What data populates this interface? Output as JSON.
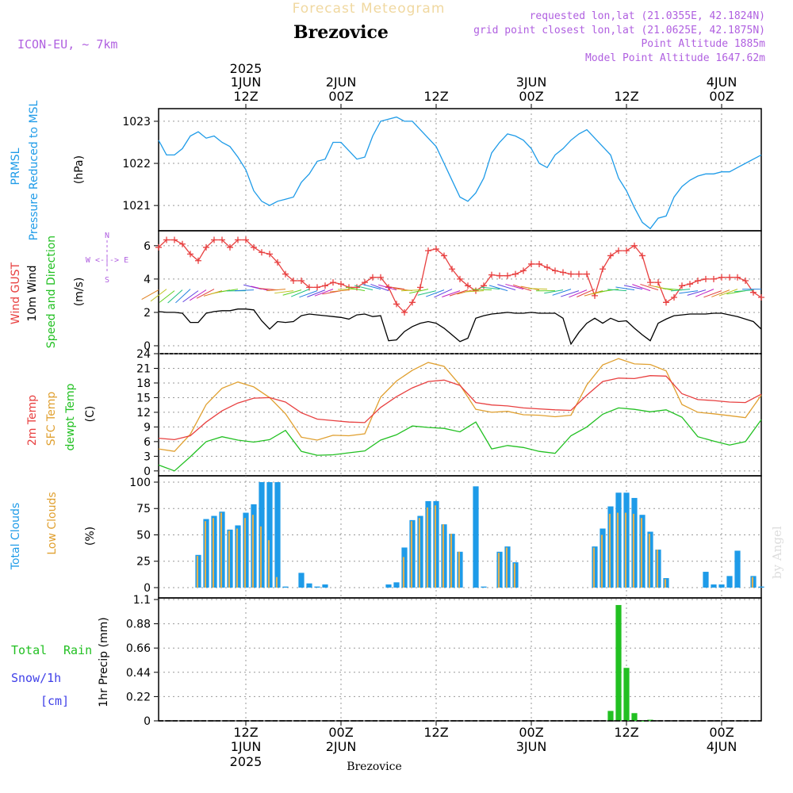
{
  "header": {
    "title": "Forecast Meteogram",
    "location": "Brezovice",
    "model": "ICON-EU, ~ 7km",
    "requested": "requested lon,lat (21.0355E, 42.1824N)",
    "gridpoint": "grid point closest lon,lat (21.0625E, 42.1875N)",
    "altitude": "Point Altitude 1885m",
    "model_altitude": "Model Point Altitude 1647.62m",
    "footer_location": "Brezovice",
    "watermark": "by Angel"
  },
  "time_axis": {
    "ticks": [
      {
        "t": 12,
        "hour": "12Z",
        "date": "1JUN",
        "year": "2025"
      },
      {
        "t": 24,
        "hour": "00Z",
        "date": "2JUN",
        "year": ""
      },
      {
        "t": 36,
        "hour": "12Z",
        "date": "",
        "year": ""
      },
      {
        "t": 48,
        "hour": "00Z",
        "date": "3JUN",
        "year": ""
      },
      {
        "t": 60,
        "hour": "12Z",
        "date": "",
        "year": ""
      },
      {
        "t": 72,
        "hour": "00Z",
        "date": "4JUN",
        "year": ""
      }
    ],
    "bottom_ticks": [
      {
        "t": 12,
        "hour": "12Z",
        "date": "1JUN",
        "year": "2025"
      },
      {
        "t": 24,
        "hour": "00Z",
        "date": "2JUN",
        "year": ""
      },
      {
        "t": 36,
        "hour": "12Z",
        "date": "",
        "year": ""
      },
      {
        "t": 48,
        "hour": "00Z",
        "date": "3JUN",
        "year": ""
      },
      {
        "t": 60,
        "hour": "12Z",
        "date": "",
        "year": ""
      },
      {
        "t": 72,
        "hour": "00Z",
        "date": "4JUN",
        "year": ""
      }
    ]
  },
  "colors": {
    "pressure": "#1e9be8",
    "gust": "#e84040",
    "wind": "#000000",
    "temp2m": "#e84040",
    "sfc": "#e0a030",
    "dewpt": "#22c022",
    "clouds_total": "#1e9be8",
    "clouds_low": "#e0b050",
    "rain": "#22c022",
    "snow": "#4040e8",
    "label_purple": "#b060e0"
  },
  "panels": {
    "pressure": {
      "label1": "PRMSL",
      "label2": "Pressure Reduced to MSL",
      "unit": "(hPa)",
      "yticks": [
        "1021",
        "1022",
        "1023"
      ]
    },
    "wind": {
      "label1": "Wind GUST",
      "label2": "10m Wind",
      "label3": "Speed and Direction",
      "unit": "(m/s)",
      "compass_n": "N",
      "compass_s": "S",
      "compass_row": "W <-|-> E",
      "yticks": [
        "0",
        "2",
        "4",
        "6"
      ]
    },
    "temp": {
      "label1": "2m Temp",
      "label2": "SFC Temp",
      "label3": "dewpt Temp",
      "unit": "(C)",
      "yticks": [
        "0",
        "3",
        "6",
        "9",
        "12",
        "15",
        "18",
        "21",
        "24"
      ]
    },
    "clouds": {
      "label1": "Total Clouds",
      "label2": "Low Clouds",
      "unit": "(%)",
      "yticks": [
        "0",
        "25",
        "50",
        "75",
        "100"
      ]
    },
    "precip": {
      "label1": "Total",
      "label1b": "Rain",
      "label2": "Snow/1h",
      "label3": "[cm]",
      "unit": "1hr Precip (mm)",
      "yticks": [
        "0",
        "0.22",
        "0.44",
        "0.66",
        "0.88",
        "1.1"
      ]
    }
  },
  "chart_data": {
    "type": "line",
    "x_unit": "hours since 2025-06-01 00Z",
    "x_range": [
      1,
      77
    ],
    "series": [
      {
        "name": "PRMSL",
        "ylim": [
          1020.4,
          1023.3
        ],
        "x": [
          1,
          2,
          3,
          4,
          5,
          6,
          7,
          8,
          9,
          10,
          11,
          12,
          13,
          14,
          15,
          16,
          17,
          18,
          19,
          20,
          21,
          22,
          23,
          24,
          25,
          26,
          27,
          28,
          29,
          30,
          31,
          32,
          33,
          34,
          35,
          36,
          37,
          38,
          39,
          40,
          41,
          42,
          43,
          44,
          45,
          46,
          47,
          48,
          49,
          50,
          51,
          52,
          53,
          54,
          55,
          56,
          57,
          58,
          59,
          60,
          61,
          62,
          63,
          64,
          65,
          66,
          67,
          68,
          69,
          70,
          71,
          72,
          73,
          74,
          75,
          76,
          77
        ],
        "values": [
          1022.55,
          1022.2,
          1022.2,
          1022.35,
          1022.65,
          1022.75,
          1022.6,
          1022.65,
          1022.5,
          1022.4,
          1022.15,
          1021.85,
          1021.35,
          1021.1,
          1021.0,
          1021.1,
          1021.15,
          1021.2,
          1021.55,
          1021.75,
          1022.05,
          1022.1,
          1022.5,
          1022.5,
          1022.3,
          1022.1,
          1022.15,
          1022.65,
          1023.0,
          1023.05,
          1023.1,
          1023.0,
          1023.0,
          1022.8,
          1022.6,
          1022.4,
          1022.0,
          1021.6,
          1021.2,
          1021.1,
          1021.3,
          1021.65,
          1022.25,
          1022.5,
          1022.7,
          1022.65,
          1022.55,
          1022.35,
          1022.0,
          1021.9,
          1022.2,
          1022.35,
          1022.55,
          1022.7,
          1022.8,
          1022.6,
          1022.4,
          1022.2,
          1021.65,
          1021.35,
          1020.95,
          1020.6,
          1020.45,
          1020.7,
          1020.75,
          1021.2,
          1021.45,
          1021.6,
          1021.7,
          1021.75,
          1021.75,
          1021.8,
          1021.8,
          1021.9,
          1022.0,
          1022.1,
          1022.2
        ]
      },
      {
        "name": "Wind GUST",
        "ylim": [
          0,
          6.8
        ],
        "x": [
          1,
          2,
          3,
          4,
          5,
          6,
          7,
          8,
          9,
          10,
          11,
          12,
          13,
          14,
          15,
          16,
          17,
          18,
          19,
          20,
          21,
          22,
          23,
          24,
          25,
          26,
          27,
          28,
          29,
          30,
          31,
          32,
          33,
          34,
          35,
          36,
          37,
          38,
          39,
          40,
          41,
          42,
          43,
          44,
          45,
          46,
          47,
          48,
          49,
          50,
          51,
          52,
          53,
          54,
          55,
          56,
          57,
          58,
          59,
          60,
          61,
          62,
          63,
          64,
          65,
          66,
          67,
          68,
          69,
          70,
          71,
          72,
          73,
          74,
          75,
          76,
          77
        ],
        "values": [
          5.9,
          6.35,
          6.35,
          6.1,
          5.5,
          5.1,
          5.9,
          6.35,
          6.35,
          5.9,
          6.35,
          6.35,
          5.9,
          5.6,
          5.5,
          5.0,
          4.3,
          3.9,
          3.9,
          3.5,
          3.5,
          3.6,
          3.8,
          3.7,
          3.5,
          3.5,
          3.8,
          4.1,
          4.1,
          3.5,
          2.5,
          2.0,
          2.6,
          3.5,
          5.7,
          5.8,
          5.4,
          4.6,
          4.0,
          3.6,
          3.3,
          3.6,
          4.25,
          4.2,
          4.2,
          4.3,
          4.5,
          4.9,
          4.9,
          4.7,
          4.5,
          4.4,
          4.3,
          4.3,
          4.3,
          3.0,
          4.6,
          5.4,
          5.7,
          5.7,
          6.0,
          5.4,
          3.8,
          3.8,
          2.6,
          2.9,
          3.6,
          3.7,
          3.9,
          4.0,
          4.0,
          4.1,
          4.1,
          4.1,
          3.9,
          3.2,
          2.9
        ]
      },
      {
        "name": "10m Wind",
        "ylim": [
          0,
          6.8
        ],
        "x": [
          1,
          2,
          3,
          4,
          5,
          6,
          7,
          8,
          9,
          10,
          11,
          12,
          13,
          14,
          15,
          16,
          17,
          18,
          19,
          20,
          21,
          22,
          23,
          24,
          25,
          26,
          27,
          28,
          29,
          30,
          31,
          32,
          33,
          34,
          35,
          36,
          37,
          38,
          39,
          40,
          41,
          42,
          43,
          44,
          45,
          46,
          47,
          48,
          49,
          50,
          51,
          52,
          53,
          54,
          55,
          56,
          57,
          58,
          59,
          60,
          61,
          62,
          63,
          64,
          65,
          66,
          67,
          68,
          69,
          70,
          71,
          72,
          73,
          74,
          75,
          76,
          77
        ],
        "values": [
          2.05,
          2.0,
          2.0,
          1.95,
          1.4,
          1.4,
          1.95,
          2.05,
          2.1,
          2.1,
          2.2,
          2.2,
          2.15,
          1.5,
          1.0,
          1.45,
          1.4,
          1.45,
          1.8,
          1.9,
          1.85,
          1.8,
          1.75,
          1.7,
          1.6,
          1.85,
          1.9,
          1.75,
          1.8,
          0.3,
          0.35,
          0.85,
          1.15,
          1.35,
          1.45,
          1.35,
          1.05,
          0.65,
          0.25,
          0.45,
          1.65,
          1.8,
          1.9,
          1.95,
          2.0,
          1.95,
          1.95,
          2.0,
          1.95,
          1.95,
          1.95,
          1.65,
          0.1,
          0.8,
          1.35,
          1.65,
          1.35,
          1.65,
          1.45,
          1.5,
          1.05,
          0.65,
          0.3,
          1.35,
          1.6,
          1.8,
          1.85,
          1.9,
          1.9,
          1.9,
          1.95,
          1.95,
          1.85,
          1.75,
          1.6,
          1.45,
          1.0
        ]
      },
      {
        "name": "2m Temp",
        "ylim": [
          -1,
          24
        ],
        "x": [
          1,
          3,
          5,
          7,
          9,
          11,
          13,
          15,
          17,
          19,
          21,
          23,
          25,
          27,
          29,
          31,
          33,
          35,
          37,
          39,
          41,
          43,
          45,
          47,
          49,
          51,
          53,
          55,
          57,
          59,
          61,
          63,
          65,
          67,
          69,
          71,
          73,
          75,
          77
        ],
        "values": [
          6.7,
          6.4,
          7.2,
          10.0,
          12.3,
          13.9,
          14.9,
          15.0,
          14.1,
          11.9,
          10.6,
          10.3,
          10.0,
          9.9,
          13.0,
          15.2,
          17.0,
          18.3,
          18.6,
          17.5,
          14.0,
          13.5,
          13.3,
          12.9,
          12.7,
          12.5,
          12.4,
          15.5,
          18.3,
          19.0,
          18.9,
          19.5,
          19.4,
          15.8,
          14.6,
          14.4,
          14.1,
          14.0,
          15.7
        ]
      },
      {
        "name": "SFC Temp",
        "ylim": [
          -1,
          24
        ],
        "x": [
          1,
          3,
          5,
          7,
          9,
          11,
          13,
          15,
          17,
          19,
          21,
          23,
          25,
          27,
          29,
          31,
          33,
          35,
          37,
          39,
          41,
          43,
          45,
          47,
          49,
          51,
          53,
          55,
          57,
          59,
          61,
          63,
          65,
          67,
          69,
          71,
          73,
          75,
          77
        ],
        "values": [
          4.5,
          4.0,
          7.5,
          13.6,
          16.9,
          18.2,
          17.2,
          15.0,
          11.7,
          6.9,
          6.3,
          7.3,
          7.2,
          7.6,
          15.1,
          18.4,
          20.6,
          22.2,
          21.4,
          17.6,
          12.6,
          12.0,
          12.2,
          11.5,
          11.4,
          11.1,
          11.4,
          17.6,
          21.7,
          23.0,
          21.9,
          21.8,
          20.5,
          13.6,
          12.0,
          11.7,
          11.3,
          10.9,
          15.5
        ]
      },
      {
        "name": "dewpt Temp",
        "ylim": [
          -1,
          24
        ],
        "x": [
          1,
          3,
          5,
          7,
          9,
          11,
          13,
          15,
          17,
          19,
          21,
          23,
          25,
          27,
          29,
          31,
          33,
          35,
          37,
          39,
          41,
          43,
          45,
          47,
          49,
          51,
          53,
          55,
          57,
          59,
          61,
          63,
          65,
          67,
          69,
          71,
          73,
          75,
          77
        ],
        "values": [
          1.2,
          0.0,
          2.9,
          6.0,
          7.0,
          6.3,
          5.9,
          6.4,
          8.3,
          4.0,
          3.2,
          3.3,
          3.7,
          4.1,
          6.3,
          7.4,
          9.2,
          8.9,
          8.7,
          8.0,
          10.0,
          4.5,
          5.2,
          4.8,
          4.0,
          3.6,
          7.2,
          9.0,
          11.6,
          12.9,
          12.6,
          12.1,
          12.5,
          11.0,
          7.0,
          6.1,
          5.3,
          6.0,
          10.5
        ]
      },
      {
        "name": "Total Clouds",
        "ylim": [
          0,
          106
        ],
        "x": [
          1,
          2,
          3,
          4,
          5,
          6,
          7,
          8,
          9,
          10,
          11,
          12,
          13,
          14,
          15,
          16,
          17,
          18,
          19,
          20,
          21,
          22,
          23,
          24,
          25,
          26,
          27,
          28,
          29,
          30,
          31,
          32,
          33,
          34,
          35,
          36,
          37,
          38,
          39,
          40,
          41,
          42,
          43,
          44,
          45,
          46,
          47,
          48,
          49,
          50,
          51,
          52,
          53,
          54,
          55,
          56,
          57,
          58,
          59,
          60,
          61,
          62,
          63,
          64,
          65,
          66,
          67,
          68,
          69,
          70,
          71,
          72,
          73,
          74,
          75,
          76,
          77
        ],
        "values": [
          0,
          0,
          0,
          0,
          0,
          31,
          65,
          68,
          72,
          55,
          59,
          71,
          79,
          100,
          100,
          100,
          1,
          0,
          14,
          4,
          1,
          3,
          0,
          0,
          0,
          0,
          0,
          0,
          0,
          3,
          5,
          38,
          64,
          68,
          82,
          82,
          60,
          51,
          34,
          0,
          96,
          1,
          0,
          34,
          39,
          24,
          0,
          0,
          0,
          0,
          0,
          0,
          0,
          0,
          0,
          39,
          56,
          77,
          90,
          90,
          85,
          69,
          53,
          36,
          9,
          0,
          0,
          0,
          0,
          15,
          3,
          3,
          11,
          35,
          0,
          11,
          1
        ]
      },
      {
        "name": "Low Clouds",
        "ylim": [
          0,
          106
        ],
        "x": [
          1,
          2,
          3,
          4,
          5,
          6,
          7,
          8,
          9,
          10,
          11,
          12,
          13,
          14,
          15,
          16,
          17,
          18,
          19,
          20,
          21,
          22,
          23,
          24,
          25,
          26,
          27,
          28,
          29,
          30,
          31,
          32,
          33,
          34,
          35,
          36,
          37,
          38,
          39,
          40,
          41,
          42,
          43,
          44,
          45,
          46,
          47,
          48,
          49,
          50,
          51,
          52,
          53,
          54,
          55,
          56,
          57,
          58,
          59,
          60,
          61,
          62,
          63,
          64,
          65,
          66,
          67,
          68,
          69,
          70,
          71,
          72,
          73,
          74,
          75,
          76,
          77
        ],
        "values": [
          0,
          0,
          0,
          0,
          0,
          30,
          63,
          66,
          71,
          54,
          56,
          66,
          69,
          58,
          45,
          10,
          0,
          0,
          0,
          0,
          0,
          0,
          0,
          0,
          0,
          0,
          0,
          0,
          0,
          0,
          0,
          29,
          63,
          66,
          76,
          78,
          60,
          51,
          34,
          0,
          0,
          0,
          0,
          33,
          38,
          23,
          0,
          0,
          0,
          0,
          0,
          0,
          0,
          0,
          0,
          38,
          50,
          70,
          71,
          71,
          70,
          66,
          51,
          36,
          8,
          0,
          0,
          0,
          0,
          0,
          0,
          0,
          0,
          0,
          0,
          10,
          0
        ]
      },
      {
        "name": "Total Rain",
        "ylim": [
          0,
          1.1
        ],
        "x": [
          58,
          59,
          60,
          61,
          62,
          63
        ],
        "values": [
          0.09,
          1.05,
          0.48,
          0.07,
          0.0,
          0.01
        ]
      }
    ]
  }
}
